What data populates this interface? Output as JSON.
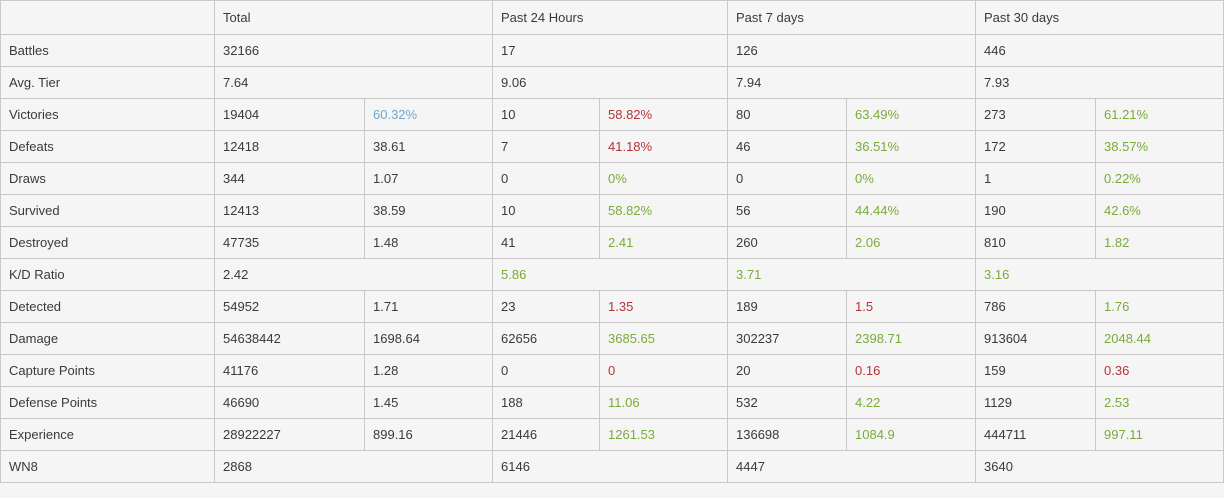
{
  "columns": [
    "Total",
    "Past 24 Hours",
    "Past 7 days",
    "Past 30 days"
  ],
  "rows": [
    {
      "label": "Battles",
      "cells": [
        {
          "value": "32166"
        },
        {
          "value": "17"
        },
        {
          "value": "126"
        },
        {
          "value": "446"
        }
      ]
    },
    {
      "label": "Avg. Tier",
      "cells": [
        {
          "value": "7.64"
        },
        {
          "value": "9.06"
        },
        {
          "value": "7.94"
        },
        {
          "value": "7.93"
        }
      ]
    },
    {
      "label": "Victories",
      "cells": [
        {
          "value": "19404",
          "rate": "60.32%",
          "rate_color": "blue"
        },
        {
          "value": "10",
          "rate": "58.82%",
          "rate_color": "red"
        },
        {
          "value": "80",
          "rate": "63.49%",
          "rate_color": "green"
        },
        {
          "value": "273",
          "rate": "61.21%",
          "rate_color": "green"
        }
      ]
    },
    {
      "label": "Defeats",
      "cells": [
        {
          "value": "12418",
          "rate": "38.61"
        },
        {
          "value": "7",
          "rate": "41.18%",
          "rate_color": "red"
        },
        {
          "value": "46",
          "rate": "36.51%",
          "rate_color": "green"
        },
        {
          "value": "172",
          "rate": "38.57%",
          "rate_color": "green"
        }
      ]
    },
    {
      "label": "Draws",
      "cells": [
        {
          "value": "344",
          "rate": "1.07"
        },
        {
          "value": "0",
          "rate": "0%",
          "rate_color": "green"
        },
        {
          "value": "0",
          "rate": "0%",
          "rate_color": "green"
        },
        {
          "value": "1",
          "rate": "0.22%",
          "rate_color": "green"
        }
      ]
    },
    {
      "label": "Survived",
      "cells": [
        {
          "value": "12413",
          "rate": "38.59"
        },
        {
          "value": "10",
          "rate": "58.82%",
          "rate_color": "green"
        },
        {
          "value": "56",
          "rate": "44.44%",
          "rate_color": "green"
        },
        {
          "value": "190",
          "rate": "42.6%",
          "rate_color": "green"
        }
      ]
    },
    {
      "label": "Destroyed",
      "cells": [
        {
          "value": "47735",
          "rate": "1.48"
        },
        {
          "value": "41",
          "rate": "2.41",
          "rate_color": "green"
        },
        {
          "value": "260",
          "rate": "2.06",
          "rate_color": "green"
        },
        {
          "value": "810",
          "rate": "1.82",
          "rate_color": "green"
        }
      ]
    },
    {
      "label": "K/D Ratio",
      "cells": [
        {
          "value": "2.42"
        },
        {
          "value": "5.86",
          "value_color": "green"
        },
        {
          "value": "3.71",
          "value_color": "green"
        },
        {
          "value": "3.16",
          "value_color": "green"
        }
      ]
    },
    {
      "label": "Detected",
      "cells": [
        {
          "value": "54952",
          "rate": "1.71"
        },
        {
          "value": "23",
          "rate": "1.35",
          "rate_color": "red"
        },
        {
          "value": "189",
          "rate": "1.5",
          "rate_color": "red"
        },
        {
          "value": "786",
          "rate": "1.76",
          "rate_color": "green"
        }
      ]
    },
    {
      "label": "Damage",
      "cells": [
        {
          "value": "54638442",
          "rate": "1698.64"
        },
        {
          "value": "62656",
          "rate": "3685.65",
          "rate_color": "green"
        },
        {
          "value": "302237",
          "rate": "2398.71",
          "rate_color": "green"
        },
        {
          "value": "913604",
          "rate": "2048.44",
          "rate_color": "green"
        }
      ]
    },
    {
      "label": "Capture Points",
      "cells": [
        {
          "value": "41176",
          "rate": "1.28"
        },
        {
          "value": "0",
          "rate": "0",
          "rate_color": "red"
        },
        {
          "value": "20",
          "rate": "0.16",
          "rate_color": "red"
        },
        {
          "value": "159",
          "rate": "0.36",
          "rate_color": "red"
        }
      ]
    },
    {
      "label": "Defense Points",
      "cells": [
        {
          "value": "46690",
          "rate": "1.45"
        },
        {
          "value": "188",
          "rate": "11.06",
          "rate_color": "green"
        },
        {
          "value": "532",
          "rate": "4.22",
          "rate_color": "green"
        },
        {
          "value": "1129",
          "rate": "2.53",
          "rate_color": "green"
        }
      ]
    },
    {
      "label": "Experience",
      "cells": [
        {
          "value": "28922227",
          "rate": "899.16"
        },
        {
          "value": "21446",
          "rate": "1261.53",
          "rate_color": "green"
        },
        {
          "value": "136698",
          "rate": "1084.9",
          "rate_color": "green"
        },
        {
          "value": "444711",
          "rate": "997.11",
          "rate_color": "green"
        }
      ]
    },
    {
      "label": "WN8",
      "cells": [
        {
          "value": "2868"
        },
        {
          "value": "6146"
        },
        {
          "value": "4447"
        },
        {
          "value": "3640"
        }
      ]
    }
  ]
}
